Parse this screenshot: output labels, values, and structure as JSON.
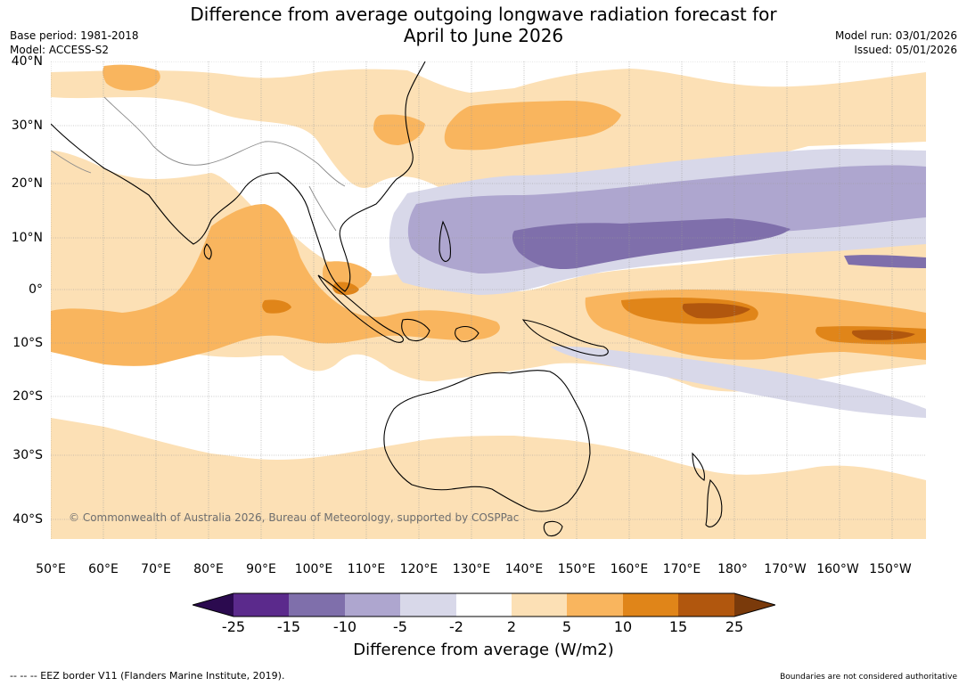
{
  "title_line1": "Difference from average outgoing longwave radiation forecast for",
  "title_line2": "April to June 2026",
  "base_period": "Base period: 1981-2018",
  "model": "Model: ACCESS-S2",
  "model_run": "Model run: 03/01/2026",
  "issued": "Issued: 05/01/2026",
  "lat_labels": [
    "40°N",
    "30°N",
    "20°N",
    "10°N",
    "0°",
    "10°S",
    "20°S",
    "30°S",
    "40°S"
  ],
  "lon_labels": [
    "50°E",
    "60°E",
    "70°E",
    "80°E",
    "90°E",
    "100°E",
    "110°E",
    "120°E",
    "130°E",
    "140°E",
    "150°E",
    "160°E",
    "170°E",
    "180°",
    "170°W",
    "160°W",
    "150°W"
  ],
  "copyright": "© Commonwealth of Australia 2026, Bureau of Meteorology, supported by COSPPac",
  "colorbar": {
    "ticks": [
      "-25",
      "-15",
      "-10",
      "-5",
      "-2",
      "2",
      "5",
      "10",
      "15",
      "25"
    ],
    "colors": [
      "#2b0a4f",
      "#5b2a8c",
      "#7f6fab",
      "#aea6cf",
      "#d8d8e9",
      "#ffffff",
      "#fce0b5",
      "#f9b55e",
      "#e08519",
      "#b1570e",
      "#7a3a0b"
    ],
    "label": "Difference from average (W/m2)"
  },
  "footer_left": "--  --  -- EEZ border V11 (Flanders Marine Institute, 2019).",
  "footer_right": "Boundaries are not considered authoritative"
}
